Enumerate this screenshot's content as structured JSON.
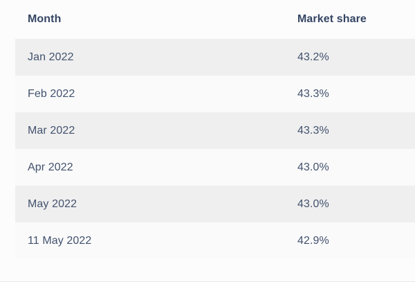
{
  "table": {
    "columns": [
      {
        "label": "Month"
      },
      {
        "label": "Market share"
      }
    ],
    "rows": [
      {
        "month": "Jan 2022",
        "share": "43.2%"
      },
      {
        "month": "Feb 2022",
        "share": "43.3%"
      },
      {
        "month": "Mar 2022",
        "share": "43.3%"
      },
      {
        "month": "Apr 2022",
        "share": "43.0%"
      },
      {
        "month": "May 2022",
        "share": "43.0%"
      },
      {
        "month": "11 May 2022",
        "share": "42.9%"
      }
    ]
  },
  "colors": {
    "page_bg": "#fcfcfd",
    "stripe": "#efefef",
    "row_alt": "#fafafa",
    "header_text": "#344563",
    "cell_text": "#42526e",
    "bottom_border": "#e7e8ea"
  }
}
